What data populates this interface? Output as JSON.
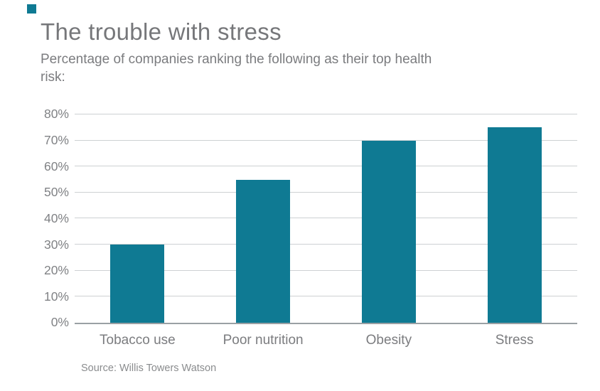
{
  "brand_color": "#0f7a93",
  "chart_data": {
    "type": "bar",
    "title": "The trouble with stress",
    "subtitle": "Percentage of companies ranking the following as their top health\nrisk:",
    "source": "Source: Willis Towers Watson",
    "categories": [
      "Tobacco use",
      "Poor nutrition",
      "Obesity",
      "Stress"
    ],
    "values": [
      30,
      55,
      70,
      75
    ],
    "xlabel": "",
    "ylabel": "",
    "ylim": [
      0,
      80
    ],
    "yticks": [
      {
        "label": "0%",
        "value": 0
      },
      {
        "label": "10%",
        "value": 10
      },
      {
        "label": "20%",
        "value": 20
      },
      {
        "label": "30%",
        "value": 30
      },
      {
        "label": "40%",
        "value": 40
      },
      {
        "label": "50%",
        "value": 50
      },
      {
        "label": "60%",
        "value": 60
      },
      {
        "label": "70%",
        "value": 70
      },
      {
        "label": "80%",
        "value": 80
      }
    ],
    "bar_color": "#0f7a93",
    "grid": true,
    "legend": false
  }
}
